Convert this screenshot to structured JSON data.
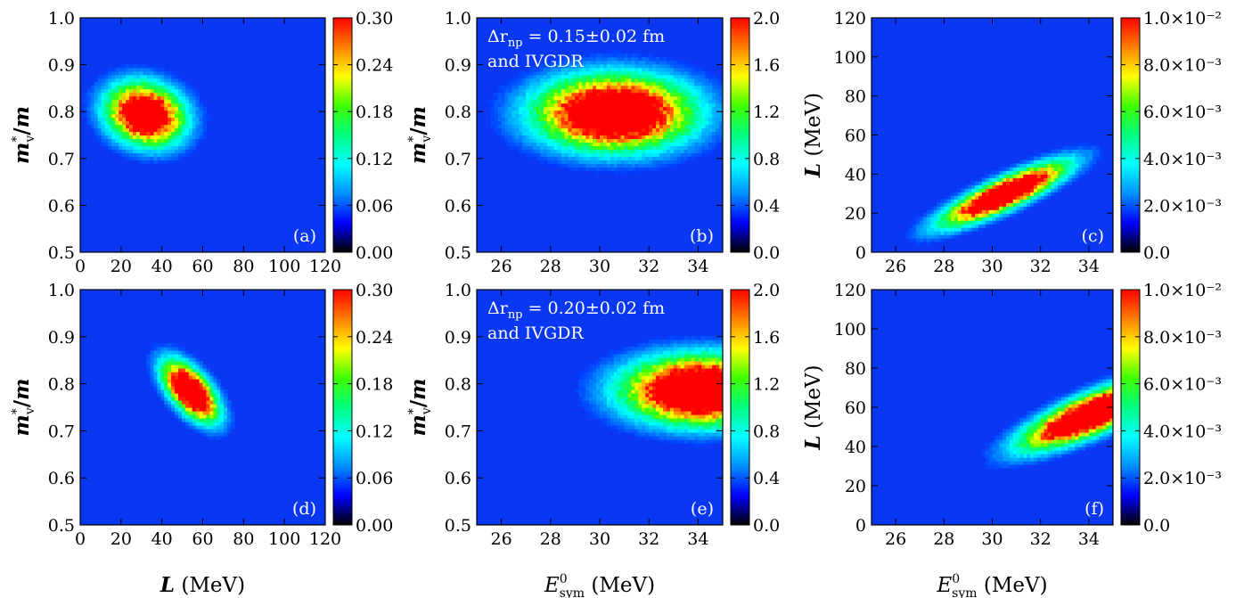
{
  "colors": {
    "background": "#0a37f2",
    "colormap": [
      "#000000",
      "#0000ff",
      "#0090ff",
      "#00ffff",
      "#00ff80",
      "#40ff00",
      "#ffff00",
      "#ff8000",
      "#ff0000"
    ]
  },
  "chart_data": [
    {
      "type": "heatmap",
      "panel": "(a)",
      "xlabel": "",
      "ylabel": "m*v/m",
      "xlim": [
        0,
        120
      ],
      "ylim": [
        0.5,
        1.0
      ],
      "xticks": [
        "0",
        "20",
        "40",
        "60",
        "80",
        "100",
        "120"
      ],
      "yticks": [
        "0.5",
        "0.6",
        "0.7",
        "0.8",
        "0.9",
        "1.0"
      ],
      "colorbar": {
        "min": 0,
        "max": 0.3,
        "ticks": [
          "0.00",
          "0.06",
          "0.12",
          "0.18",
          "0.24",
          "0.30"
        ]
      },
      "blob": {
        "center": [
          32,
          0.795
        ],
        "sx": 12,
        "sy": 0.042,
        "rho": -0.15,
        "peak": 0.45
      },
      "annotation": ""
    },
    {
      "type": "heatmap",
      "panel": "(b)",
      "xlabel": "",
      "ylabel": "m*v/m",
      "xlim": [
        25,
        35
      ],
      "ylim": [
        0.5,
        1.0
      ],
      "xticks": [
        "26",
        "28",
        "30",
        "32",
        "34"
      ],
      "yticks": [
        "0.5",
        "0.6",
        "0.7",
        "0.8",
        "0.9",
        "1.0"
      ],
      "colorbar": {
        "min": 0,
        "max": 2.0,
        "ticks": [
          "0.0",
          "0.4",
          "0.8",
          "1.2",
          "1.6",
          "2.0"
        ]
      },
      "blob": {
        "center": [
          30.6,
          0.798
        ],
        "sx": 2.0,
        "sy": 0.05,
        "rho": 0.0,
        "peak": 3.2
      },
      "annotation": "Δr_np = 0.15±0.02 fm and IVGDR",
      "annotation_lines": [
        "Δr",
        "np",
        " = 0.15±0.02 fm",
        "and IVGDR"
      ]
    },
    {
      "type": "heatmap",
      "panel": "(c)",
      "xlabel": "",
      "ylabel": "L (MeV)",
      "xlim": [
        25,
        35
      ],
      "ylim": [
        0,
        120
      ],
      "xticks": [
        "26",
        "28",
        "30",
        "32",
        "34"
      ],
      "yticks": [
        "0",
        "20",
        "40",
        "60",
        "80",
        "100",
        "120"
      ],
      "colorbar": {
        "min": 0,
        "max": 0.01,
        "ticks": [
          "0.0",
          "2.0×10⁻³",
          "4.0×10⁻³",
          "6.0×10⁻³",
          "8.0×10⁻³",
          "1.0×10⁻²"
        ]
      },
      "blob": {
        "center": [
          30.5,
          30
        ],
        "sx": 1.6,
        "sy": 10,
        "rho": 0.85,
        "peak": 0.016
      },
      "annotation": ""
    },
    {
      "type": "heatmap",
      "panel": "(d)",
      "xlabel": "L (MeV)",
      "ylabel": "m*v/m",
      "xlim": [
        0,
        120
      ],
      "ylim": [
        0.5,
        1.0
      ],
      "xticks": [
        "0",
        "20",
        "40",
        "60",
        "80",
        "100",
        "120"
      ],
      "yticks": [
        "0.5",
        "0.6",
        "0.7",
        "0.8",
        "0.9",
        "1.0"
      ],
      "colorbar": {
        "min": 0,
        "max": 0.3,
        "ticks": [
          "0.00",
          "0.06",
          "0.12",
          "0.18",
          "0.24",
          "0.30"
        ]
      },
      "blob": {
        "center": [
          54,
          0.785
        ],
        "sx": 8.5,
        "sy": 0.04,
        "rho": -0.6,
        "peak": 0.48
      },
      "annotation": ""
    },
    {
      "type": "heatmap",
      "panel": "(e)",
      "xlabel": "E0sym (MeV)",
      "ylabel": "m*v/m",
      "xlim": [
        25,
        35
      ],
      "ylim": [
        0.5,
        1.0
      ],
      "xticks": [
        "26",
        "28",
        "30",
        "32",
        "34"
      ],
      "yticks": [
        "0.5",
        "0.6",
        "0.7",
        "0.8",
        "0.9",
        "1.0"
      ],
      "colorbar": {
        "min": 0,
        "max": 2.0,
        "ticks": [
          "0.0",
          "0.4",
          "0.8",
          "1.2",
          "1.6",
          "2.0"
        ]
      },
      "blob": {
        "center": [
          34.2,
          0.787
        ],
        "sx": 2.0,
        "sy": 0.045,
        "rho": 0.0,
        "peak": 3.4
      },
      "annotation": "Δr_np = 0.20±0.02 fm and IVGDR",
      "annotation_lines": [
        "Δr",
        "np",
        " = 0.20±0.02 fm",
        "and IVGDR"
      ]
    },
    {
      "type": "heatmap",
      "panel": "(f)",
      "xlabel": "E0sym (MeV)",
      "ylabel": "L (MeV)",
      "xlim": [
        25,
        35
      ],
      "ylim": [
        0,
        120
      ],
      "xticks": [
        "26",
        "28",
        "30",
        "32",
        "34"
      ],
      "yticks": [
        "0",
        "20",
        "40",
        "60",
        "80",
        "100",
        "120"
      ],
      "colorbar": {
        "min": 0,
        "max": 0.01,
        "ticks": [
          "0.0",
          "2.0×10⁻³",
          "4.0×10⁻³",
          "6.0×10⁻³",
          "8.0×10⁻³",
          "1.0×10⁻²"
        ]
      },
      "blob": {
        "center": [
          34.2,
          57
        ],
        "sx": 1.8,
        "sy": 11,
        "rho": 0.8,
        "peak": 0.017
      },
      "annotation": ""
    }
  ]
}
